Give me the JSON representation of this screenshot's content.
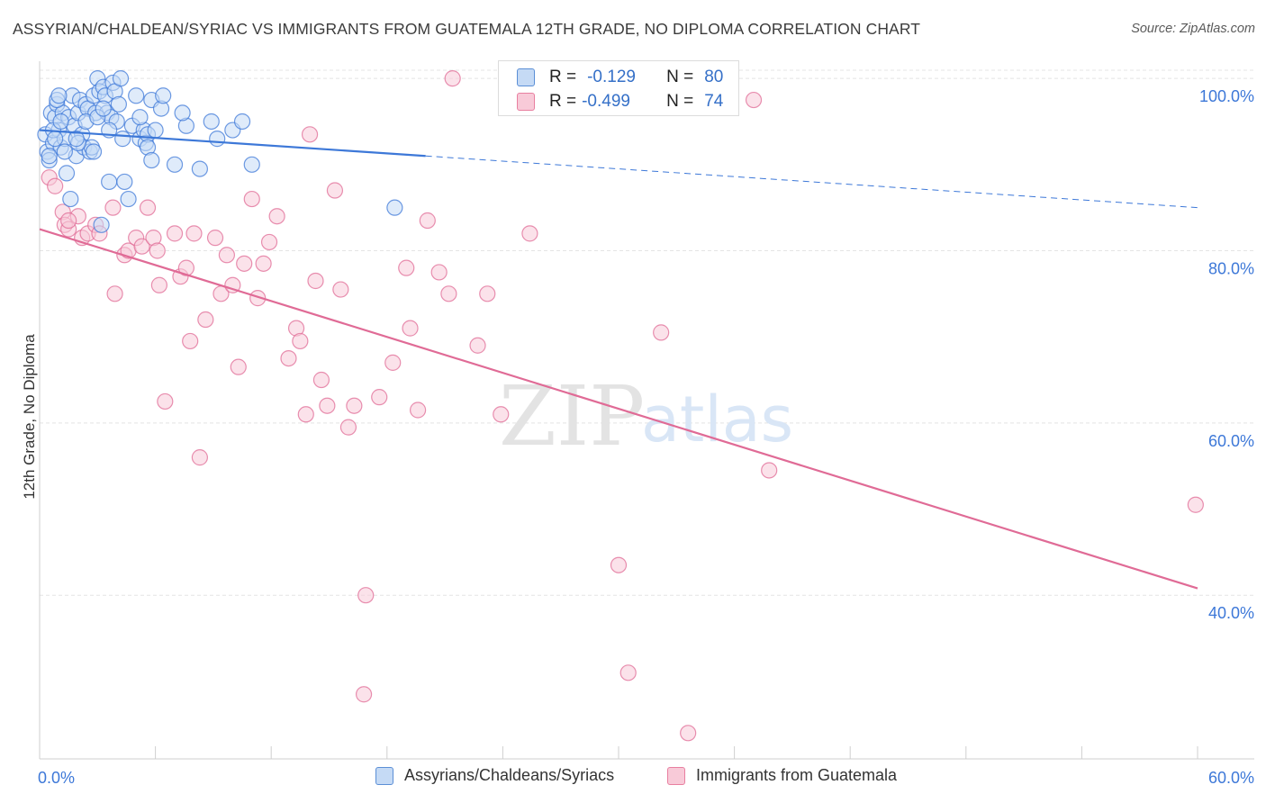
{
  "header": {
    "title": "ASSYRIAN/CHALDEAN/SYRIAC VS IMMIGRANTS FROM GUATEMALA 12TH GRADE, NO DIPLOMA CORRELATION CHART",
    "source": "Source: ZipAtlas.com"
  },
  "watermark": {
    "zip": "ZIP",
    "atlas": "atlas"
  },
  "stats": {
    "rows": [
      {
        "r_label": "R =",
        "r_value": "-0.129",
        "n_label": "N =",
        "n_value": "80",
        "color": "#5b8fd6",
        "fill": "#c5daf5"
      },
      {
        "r_label": "R =",
        "r_value": "-0.499",
        "n_label": "N =",
        "n_value": "74",
        "color": "#e87fa0",
        "fill": "#f8cad8"
      }
    ]
  },
  "legend": {
    "items": [
      {
        "label": "Assyrians/Chaldeans/Syriacs",
        "color": "#5b8fd6",
        "fill": "#c5daf5"
      },
      {
        "label": "Immigrants from Guatemala",
        "color": "#e87fa0",
        "fill": "#f8cad8"
      }
    ]
  },
  "chart_data": {
    "type": "scatter",
    "title": "ASSYRIAN/CHALDEAN/SYRIAC VS IMMIGRANTS FROM GUATEMALA 12TH GRADE, NO DIPLOMA CORRELATION CHART",
    "xlabel": "",
    "ylabel": "12th Grade, No Diploma",
    "xlim": [
      0,
      60
    ],
    "ylim": [
      21,
      102
    ],
    "x_tick_labels": [
      "0.0%",
      "60.0%"
    ],
    "y_ticks": [
      40,
      60,
      80,
      100
    ],
    "y_tick_labels": [
      "40.0%",
      "60.0%",
      "80.0%",
      "100.0%"
    ],
    "grid": true,
    "legend_position": "bottom",
    "series": [
      {
        "name": "Assyrians/Chaldeans/Syriacs",
        "color": "#3d78d8",
        "fill": "#c5daf5",
        "trend": {
          "x": [
            0,
            20
          ],
          "y": [
            94.0,
            91.0
          ],
          "dashed_to": [
            60,
            85.0
          ]
        },
        "points": [
          [
            0.3,
            93.5
          ],
          [
            0.4,
            91.5
          ],
          [
            0.5,
            90.5
          ],
          [
            0.6,
            96
          ],
          [
            0.7,
            92.5
          ],
          [
            0.8,
            95.5
          ],
          [
            0.9,
            97
          ],
          [
            1.0,
            94
          ],
          [
            1.1,
            92
          ],
          [
            1.2,
            96
          ],
          [
            1.3,
            93
          ],
          [
            1.4,
            89
          ],
          [
            1.5,
            95.5
          ],
          [
            1.6,
            86
          ],
          [
            1.7,
            98
          ],
          [
            1.8,
            94.5
          ],
          [
            1.9,
            91
          ],
          [
            2.0,
            96
          ],
          [
            2.1,
            97.5
          ],
          [
            2.2,
            93.5
          ],
          [
            2.3,
            92
          ],
          [
            2.4,
            97
          ],
          [
            2.5,
            96.5
          ],
          [
            2.6,
            91.5
          ],
          [
            2.7,
            92
          ],
          [
            2.8,
            98
          ],
          [
            2.9,
            96
          ],
          [
            3.0,
            100
          ],
          [
            3.1,
            98.5
          ],
          [
            3.2,
            83
          ],
          [
            3.3,
            99
          ],
          [
            3.4,
            98
          ],
          [
            3.5,
            96
          ],
          [
            3.6,
            88
          ],
          [
            3.7,
            95.5
          ],
          [
            3.8,
            99.5
          ],
          [
            3.9,
            98.5
          ],
          [
            4.0,
            95
          ],
          [
            4.2,
            100
          ],
          [
            4.4,
            88
          ],
          [
            4.6,
            86
          ],
          [
            4.8,
            94.5
          ],
          [
            5.0,
            98
          ],
          [
            5.2,
            93
          ],
          [
            5.4,
            94
          ],
          [
            5.5,
            92.5
          ],
          [
            5.6,
            93.5
          ],
          [
            5.8,
            97.5
          ],
          [
            6.0,
            94
          ],
          [
            6.3,
            96.5
          ],
          [
            7.0,
            90
          ],
          [
            7.6,
            94.5
          ],
          [
            8.3,
            89.5
          ],
          [
            8.9,
            95
          ],
          [
            10.0,
            94
          ],
          [
            11.0,
            90
          ],
          [
            0.5,
            91
          ],
          [
            0.7,
            94
          ],
          [
            0.9,
            97.5
          ],
          [
            1.1,
            95
          ],
          [
            1.3,
            91.5
          ],
          [
            2.0,
            92.5
          ],
          [
            2.4,
            95
          ],
          [
            3.0,
            95.5
          ],
          [
            3.6,
            94
          ],
          [
            4.3,
            93
          ],
          [
            5.2,
            95.5
          ],
          [
            5.6,
            92
          ],
          [
            6.4,
            98
          ],
          [
            9.2,
            93
          ],
          [
            10.5,
            95
          ],
          [
            18.4,
            85
          ],
          [
            1.0,
            98
          ],
          [
            1.9,
            93
          ],
          [
            2.8,
            91.5
          ],
          [
            3.3,
            96.5
          ],
          [
            4.1,
            97
          ],
          [
            5.8,
            90.5
          ],
          [
            7.4,
            96
          ],
          [
            0.8,
            93
          ]
        ]
      },
      {
        "name": "Immigrants from Guatemala",
        "color": "#e06b96",
        "fill": "#f8cad8",
        "trend": {
          "x": [
            0,
            60
          ],
          "y": [
            82.5,
            40.8
          ]
        },
        "points": [
          [
            0.5,
            88.5
          ],
          [
            0.8,
            87.5
          ],
          [
            1.2,
            84.5
          ],
          [
            1.3,
            83
          ],
          [
            1.5,
            82.5
          ],
          [
            2.0,
            84
          ],
          [
            2.2,
            81.5
          ],
          [
            2.5,
            82
          ],
          [
            2.9,
            83
          ],
          [
            3.1,
            82
          ],
          [
            3.8,
            85
          ],
          [
            3.9,
            75
          ],
          [
            4.4,
            79.5
          ],
          [
            4.6,
            80
          ],
          [
            5.0,
            81.5
          ],
          [
            5.3,
            80.5
          ],
          [
            5.6,
            85
          ],
          [
            5.9,
            81.5
          ],
          [
            6.2,
            76
          ],
          [
            6.5,
            62.5
          ],
          [
            7.0,
            82
          ],
          [
            7.3,
            77
          ],
          [
            7.6,
            78
          ],
          [
            7.8,
            69.5
          ],
          [
            8.0,
            82
          ],
          [
            8.3,
            56
          ],
          [
            8.6,
            72
          ],
          [
            9.1,
            81.5
          ],
          [
            9.4,
            75
          ],
          [
            9.7,
            79.5
          ],
          [
            10.0,
            76
          ],
          [
            10.3,
            66.5
          ],
          [
            10.6,
            78.5
          ],
          [
            11.0,
            86
          ],
          [
            11.3,
            74.5
          ],
          [
            11.6,
            78.5
          ],
          [
            11.9,
            81
          ],
          [
            12.3,
            84
          ],
          [
            12.9,
            67.5
          ],
          [
            13.3,
            71
          ],
          [
            13.5,
            69.5
          ],
          [
            13.8,
            61
          ],
          [
            14.0,
            93.5
          ],
          [
            14.3,
            76.5
          ],
          [
            14.6,
            65
          ],
          [
            14.9,
            62
          ],
          [
            15.3,
            87
          ],
          [
            15.6,
            75.5
          ],
          [
            16.0,
            59.5
          ],
          [
            16.3,
            62
          ],
          [
            16.8,
            28.5
          ],
          [
            16.9,
            40
          ],
          [
            17.6,
            63
          ],
          [
            18.3,
            67
          ],
          [
            19.0,
            78
          ],
          [
            19.2,
            71
          ],
          [
            19.6,
            61.5
          ],
          [
            20.1,
            83.5
          ],
          [
            20.7,
            77.5
          ],
          [
            21.2,
            75
          ],
          [
            21.4,
            100
          ],
          [
            22.7,
            69
          ],
          [
            23.2,
            75
          ],
          [
            23.9,
            61
          ],
          [
            25.4,
            82
          ],
          [
            30.0,
            43.5
          ],
          [
            30.5,
            31
          ],
          [
            32.2,
            70.5
          ],
          [
            33.6,
            24
          ],
          [
            37.0,
            97.5
          ],
          [
            37.8,
            54.5
          ],
          [
            59.9,
            50.5
          ],
          [
            1.5,
            83.5
          ],
          [
            6.1,
            80
          ]
        ]
      }
    ]
  }
}
